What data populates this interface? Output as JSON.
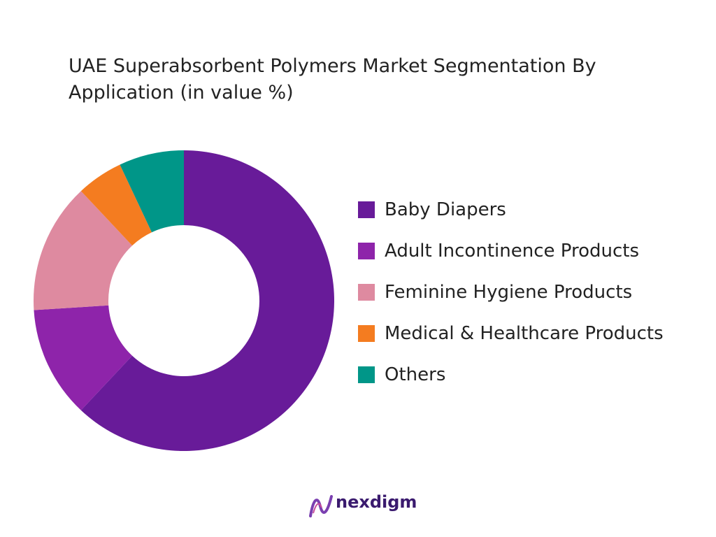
{
  "chart_data": {
    "type": "donut",
    "title": "UAE Superabsorbent Polymers Market Segmentation By Application (in value %)",
    "categories": [
      "Baby Diapers",
      "Adult Incontinence Products",
      "Feminine Hygiene Products",
      "Medical & Healthcare Products",
      "Others"
    ],
    "values": [
      62,
      12,
      14,
      5,
      7
    ],
    "colors": [
      "#681b99",
      "#8e24aa",
      "#de8aa0",
      "#f47c20",
      "#009688"
    ]
  },
  "brand": "nexdigm"
}
